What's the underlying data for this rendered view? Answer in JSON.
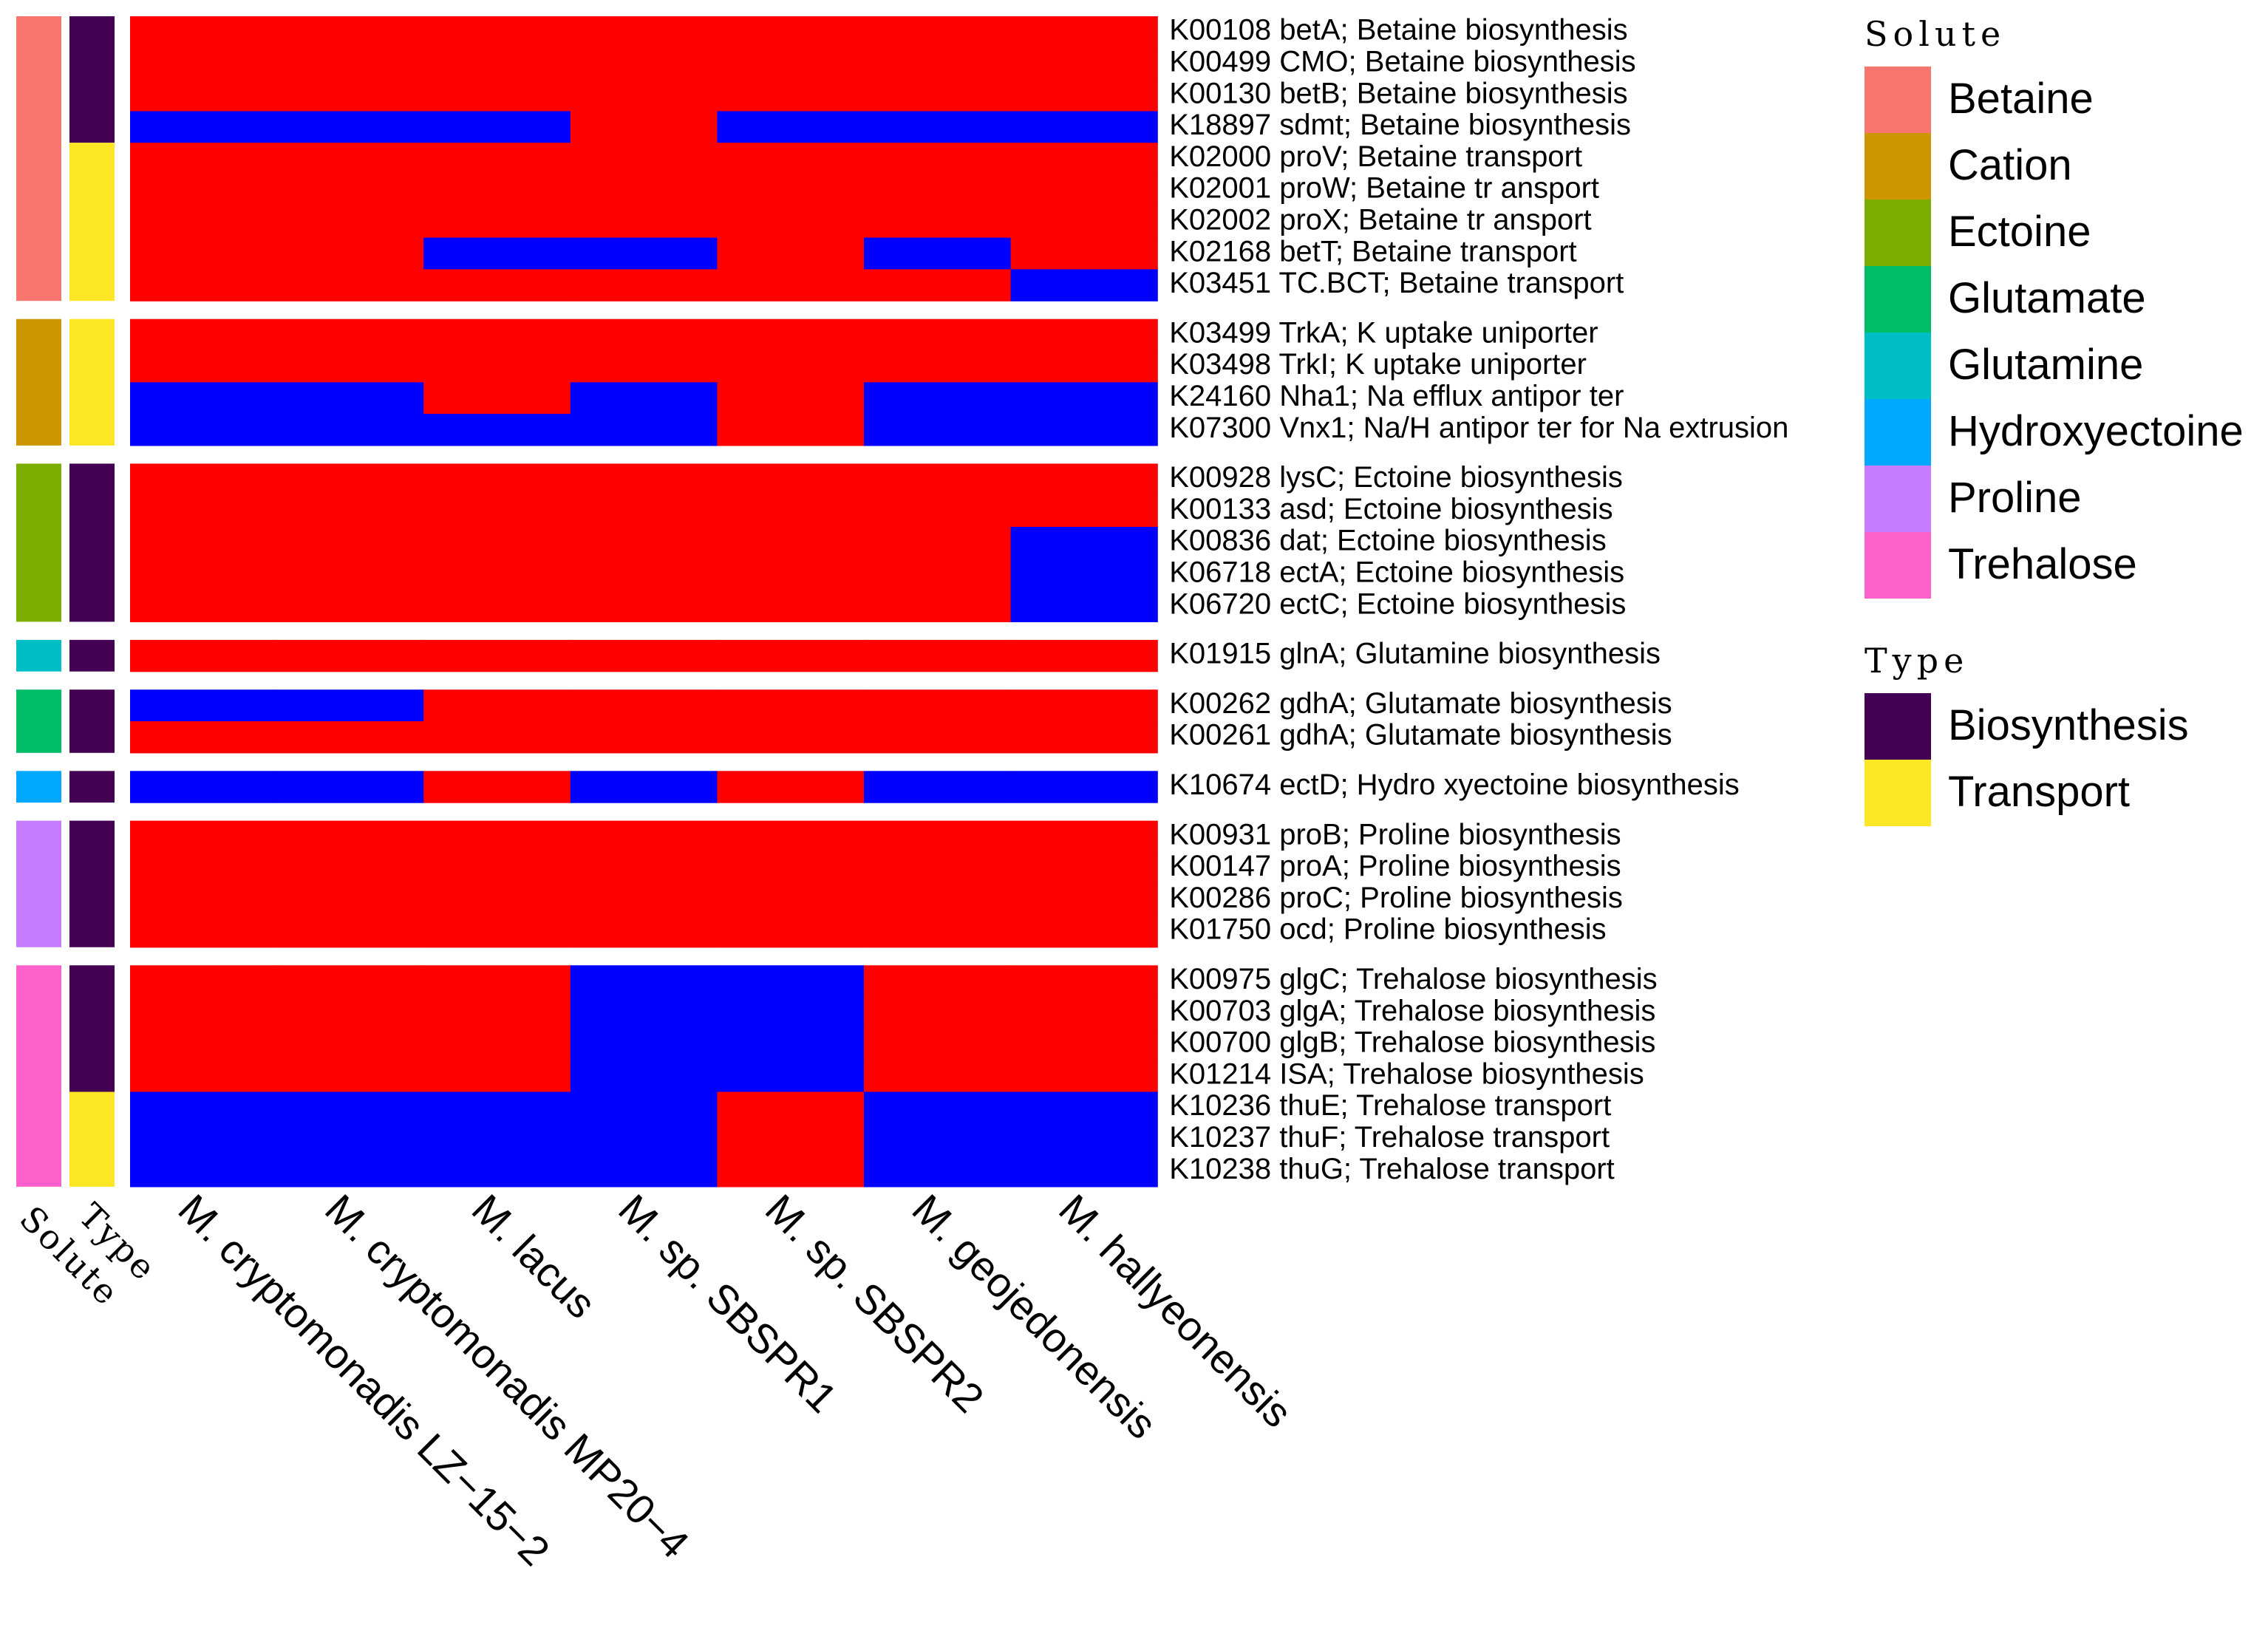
{
  "chart_data": {
    "type": "heatmap",
    "value_colors": {
      "0": "#0000FF",
      "1": "#FF0000"
    },
    "columns": [
      "M. cryptomonadis LZ−15−2",
      "M. cryptomonadis MP20−4",
      "M. lacus",
      "M. sp. SBSPR1",
      "M. sp. SBSPR2",
      "M. geojedonensis",
      "M. hallyeonensis"
    ],
    "annotation_titles": {
      "solute": "Solute",
      "type": "Type"
    },
    "groups": [
      {
        "solute": "Betaine",
        "rows": [
          {
            "label": "K00108 betA; Betaine biosynthesis",
            "type": "Biosynthesis",
            "values": [
              1,
              1,
              1,
              1,
              1,
              1,
              1
            ]
          },
          {
            "label": "K00499 CMO; Betaine biosynthesis",
            "type": "Biosynthesis",
            "values": [
              1,
              1,
              1,
              1,
              1,
              1,
              1
            ]
          },
          {
            "label": "K00130 betB; Betaine biosynthesis",
            "type": "Biosynthesis",
            "values": [
              1,
              1,
              1,
              1,
              1,
              1,
              1
            ]
          },
          {
            "label": "K18897 sdmt; Betaine biosynthesis",
            "type": "Biosynthesis",
            "values": [
              0,
              0,
              0,
              1,
              0,
              0,
              0
            ]
          },
          {
            "label": "K02000 proV; Betaine transport",
            "type": "Transport",
            "values": [
              1,
              1,
              1,
              1,
              1,
              1,
              1
            ]
          },
          {
            "label": "K02001 proW; Betaine tr ansport",
            "type": "Transport",
            "values": [
              1,
              1,
              1,
              1,
              1,
              1,
              1
            ]
          },
          {
            "label": "K02002 proX; Betaine tr ansport",
            "type": "Transport",
            "values": [
              1,
              1,
              1,
              1,
              1,
              1,
              1
            ]
          },
          {
            "label": "K02168 betT; Betaine transport",
            "type": "Transport",
            "values": [
              1,
              1,
              0,
              0,
              1,
              0,
              1
            ]
          },
          {
            "label": "K03451 TC.BCT; Betaine transport",
            "type": "Transport",
            "values": [
              1,
              1,
              1,
              1,
              1,
              1,
              0
            ]
          }
        ]
      },
      {
        "solute": "Cation",
        "rows": [
          {
            "label": "K03499 TrkA; K uptake uniporter",
            "type": "Transport",
            "values": [
              1,
              1,
              1,
              1,
              1,
              1,
              1
            ]
          },
          {
            "label": "K03498 TrkI; K uptake uniporter",
            "type": "Transport",
            "values": [
              1,
              1,
              1,
              1,
              1,
              1,
              1
            ]
          },
          {
            "label": "K24160 Nha1; Na efflux antipor ter",
            "type": "Transport",
            "values": [
              0,
              0,
              1,
              0,
              1,
              0,
              0
            ]
          },
          {
            "label": "K07300 Vnx1; Na/H antipor ter for Na extrusion",
            "type": "Transport",
            "values": [
              0,
              0,
              0,
              0,
              1,
              0,
              0
            ]
          }
        ]
      },
      {
        "solute": "Ectoine",
        "rows": [
          {
            "label": "K00928 lysC; Ectoine biosynthesis",
            "type": "Biosynthesis",
            "values": [
              1,
              1,
              1,
              1,
              1,
              1,
              1
            ]
          },
          {
            "label": "K00133 asd; Ectoine biosynthesis",
            "type": "Biosynthesis",
            "values": [
              1,
              1,
              1,
              1,
              1,
              1,
              1
            ]
          },
          {
            "label": "K00836 dat; Ectoine biosynthesis",
            "type": "Biosynthesis",
            "values": [
              1,
              1,
              1,
              1,
              1,
              1,
              0
            ]
          },
          {
            "label": "K06718 ectA; Ectoine biosynthesis",
            "type": "Biosynthesis",
            "values": [
              1,
              1,
              1,
              1,
              1,
              1,
              0
            ]
          },
          {
            "label": "K06720 ectC; Ectoine biosynthesis",
            "type": "Biosynthesis",
            "values": [
              1,
              1,
              1,
              1,
              1,
              1,
              0
            ]
          }
        ]
      },
      {
        "solute": "Glutamine",
        "rows": [
          {
            "label": "K01915 glnA; Glutamine biosynthesis",
            "type": "Biosynthesis",
            "values": [
              1,
              1,
              1,
              1,
              1,
              1,
              1
            ]
          }
        ]
      },
      {
        "solute": "Glutamate",
        "rows": [
          {
            "label": "K00262 gdhA; Glutamate biosynthesis",
            "type": "Biosynthesis",
            "values": [
              0,
              0,
              1,
              1,
              1,
              1,
              1
            ]
          },
          {
            "label": "K00261 gdhA; Glutamate biosynthesis",
            "type": "Biosynthesis",
            "values": [
              1,
              1,
              1,
              1,
              1,
              1,
              1
            ]
          }
        ]
      },
      {
        "solute": "Hydroxyectoine",
        "rows": [
          {
            "label": "K10674 ectD; Hydro xyectoine biosynthesis",
            "type": "Biosynthesis",
            "values": [
              0,
              0,
              1,
              0,
              1,
              0,
              0
            ]
          }
        ]
      },
      {
        "solute": "Proline",
        "rows": [
          {
            "label": "K00931 proB; Proline biosynthesis",
            "type": "Biosynthesis",
            "values": [
              1,
              1,
              1,
              1,
              1,
              1,
              1
            ]
          },
          {
            "label": "K00147 proA; Proline biosynthesis",
            "type": "Biosynthesis",
            "values": [
              1,
              1,
              1,
              1,
              1,
              1,
              1
            ]
          },
          {
            "label": "K00286 proC; Proline biosynthesis",
            "type": "Biosynthesis",
            "values": [
              1,
              1,
              1,
              1,
              1,
              1,
              1
            ]
          },
          {
            "label": "K01750 ocd; Proline biosynthesis",
            "type": "Biosynthesis",
            "values": [
              1,
              1,
              1,
              1,
              1,
              1,
              1
            ]
          }
        ]
      },
      {
        "solute": "Trehalose",
        "rows": [
          {
            "label": "K00975 glgC; Trehalose biosynthesis",
            "type": "Biosynthesis",
            "values": [
              1,
              1,
              1,
              0,
              0,
              1,
              1
            ]
          },
          {
            "label": "K00703 glgA; Trehalose biosynthesis",
            "type": "Biosynthesis",
            "values": [
              1,
              1,
              1,
              0,
              0,
              1,
              1
            ]
          },
          {
            "label": "K00700 glgB; Trehalose biosynthesis",
            "type": "Biosynthesis",
            "values": [
              1,
              1,
              1,
              0,
              0,
              1,
              1
            ]
          },
          {
            "label": "K01214 ISA; Trehalose biosynthesis",
            "type": "Biosynthesis",
            "values": [
              1,
              1,
              1,
              0,
              0,
              1,
              1
            ]
          },
          {
            "label": "K10236 thuE; Trehalose transport",
            "type": "Transport",
            "values": [
              0,
              0,
              0,
              0,
              1,
              0,
              0
            ]
          },
          {
            "label": "K10237 thuF; Trehalose transport",
            "type": "Transport",
            "values": [
              0,
              0,
              0,
              0,
              1,
              0,
              0
            ]
          },
          {
            "label": "K10238 thuG; Trehalose transport",
            "type": "Transport",
            "values": [
              0,
              0,
              0,
              0,
              1,
              0,
              0
            ]
          }
        ]
      }
    ],
    "legend": {
      "solute": {
        "title": "Solute",
        "entries": [
          {
            "label": "Betaine",
            "color": "#F8766D"
          },
          {
            "label": "Cation",
            "color": "#CD9600"
          },
          {
            "label": "Ectoine",
            "color": "#7CAE00"
          },
          {
            "label": "Glutamate",
            "color": "#00BE67"
          },
          {
            "label": "Glutamine",
            "color": "#00BFC4"
          },
          {
            "label": "Hydroxyectoine",
            "color": "#00A9FF"
          },
          {
            "label": "Proline",
            "color": "#C77CFF"
          },
          {
            "label": "Trehalose",
            "color": "#FF61CC"
          }
        ]
      },
      "type": {
        "title": "Type",
        "entries": [
          {
            "label": "Biosynthesis",
            "color": "#440154"
          },
          {
            "label": "Transport",
            "color": "#FDE725"
          }
        ]
      }
    }
  }
}
